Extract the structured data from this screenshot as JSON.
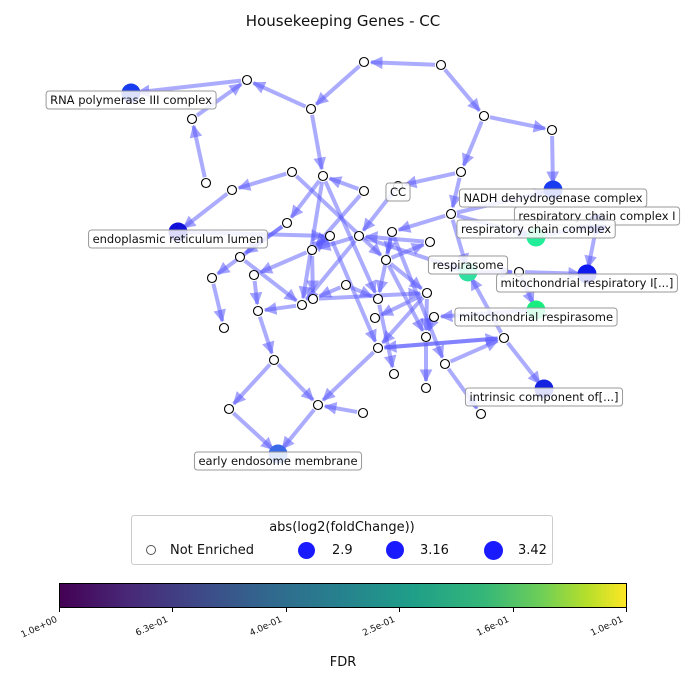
{
  "title": "Housekeeping Genes - CC",
  "colors": {
    "edge": "#5a5aff",
    "node_face": "#ffffff",
    "node_edge": "#000000",
    "label_border": "#999999",
    "legend_marker": "#1a1aff"
  },
  "labels": {
    "rna_pol": "RNA polymerase III complex",
    "cc": "CC",
    "nadh": "NADH dehydrogenase complex",
    "resp_complex_1": "respiratory chain complex I",
    "resp_chain": "respiratory chain complex",
    "er_lumen": "endoplasmic reticulum lumen",
    "respirasome": "respirasome",
    "mito_resp_1": "mitochondrial respiratory I[...]",
    "mito_respirasome": "mitochondrial respirasome",
    "intrinsic": "intrinsic component of[...]",
    "early_endo": "early endosome membrane"
  },
  "legend": {
    "title": "abs(log2(foldChange))",
    "not_enriched": "Not Enriched",
    "items": [
      "2.9",
      "3.16",
      "3.42"
    ]
  },
  "colorbar": {
    "label": "FDR",
    "ticks": [
      "1.0e+00",
      "6.3e-01",
      "4.0e-01",
      "2.5e-01",
      "1.6e-01",
      "1.0e-01"
    ],
    "colormap": "viridis"
  }
}
